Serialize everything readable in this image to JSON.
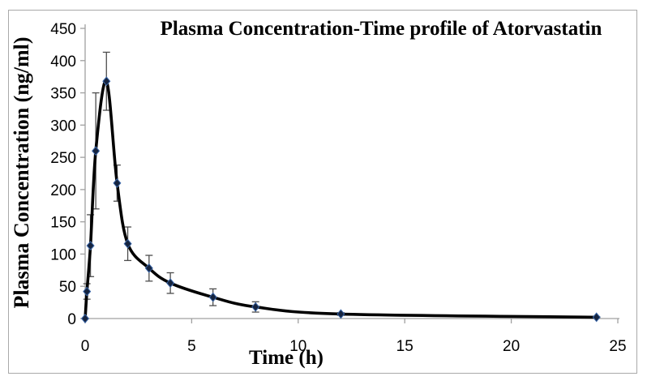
{
  "chart_data": {
    "type": "line",
    "title": "Plasma Concentration-Time profile of Atorvastatin",
    "xlabel": "Time (h)",
    "ylabel": "Plasma Concentration (ng/ml)",
    "series": [
      {
        "name": "Atorvastatin",
        "x": [
          0,
          0.083,
          0.25,
          0.5,
          1,
          1.5,
          2,
          3,
          4,
          6,
          8,
          12,
          24
        ],
        "y": [
          0,
          42,
          113,
          260,
          368,
          210,
          116,
          78,
          55,
          33,
          18,
          7,
          2
        ],
        "y_err": [
          0,
          12,
          48,
          90,
          45,
          28,
          26,
          20,
          16,
          13,
          8,
          2,
          1
        ]
      }
    ],
    "xlim": [
      0,
      25
    ],
    "ylim": [
      0,
      450
    ],
    "x_ticks": [
      "0",
      "5",
      "10",
      "15",
      "20",
      "25"
    ],
    "y_ticks": [
      "0",
      "50",
      "100",
      "150",
      "200",
      "250",
      "300",
      "350",
      "400",
      "450"
    ],
    "grid": false,
    "legend": false,
    "marker": "diamond",
    "smooth_line": true,
    "colors": {
      "line": "#000000",
      "marker_fill": "#16243f",
      "marker_edge": "#3a66a8",
      "error_bar": "#4d4d4d",
      "axis": "#a0a0a0",
      "border": "#a9a9a9"
    }
  }
}
